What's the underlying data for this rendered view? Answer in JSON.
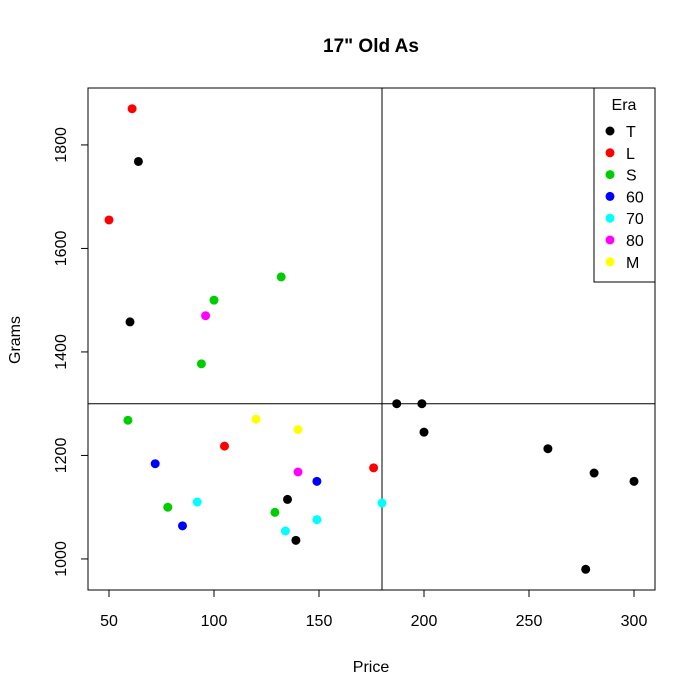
{
  "chart_data": {
    "type": "scatter",
    "title": "17\" Old As",
    "xlabel": "Price",
    "ylabel": "Grams",
    "xlim": [
      40,
      310
    ],
    "ylim": [
      940,
      1910
    ],
    "x_ticks": [
      50,
      100,
      150,
      200,
      250,
      300
    ],
    "y_ticks": [
      1000,
      1200,
      1400,
      1600,
      1800
    ],
    "reference_lines": {
      "vertical_x": 180,
      "horizontal_y": 1300
    },
    "grid": false,
    "legend": {
      "title": "Era",
      "placement": "top-right",
      "entries": [
        {
          "label": "T",
          "color": "#000000"
        },
        {
          "label": "L",
          "color": "#ff0000"
        },
        {
          "label": "S",
          "color": "#00cd00"
        },
        {
          "label": "60",
          "color": "#0000ff"
        },
        {
          "label": "70",
          "color": "#00ffff"
        },
        {
          "label": "80",
          "color": "#ff00ff"
        },
        {
          "label": "M",
          "color": "#ffff00"
        }
      ]
    },
    "series": [
      {
        "name": "T",
        "color": "#000000",
        "points": [
          [
            64,
            1768
          ],
          [
            60,
            1458
          ],
          [
            187,
            1300
          ],
          [
            199,
            1300
          ],
          [
            200,
            1245
          ],
          [
            259,
            1213
          ],
          [
            281,
            1166
          ],
          [
            300,
            1150
          ],
          [
            135,
            1115
          ],
          [
            139,
            1036
          ],
          [
            277,
            980
          ]
        ]
      },
      {
        "name": "L",
        "color": "#ff0000",
        "points": [
          [
            61,
            1870
          ],
          [
            50,
            1655
          ],
          [
            105,
            1218
          ],
          [
            176,
            1176
          ]
        ]
      },
      {
        "name": "S",
        "color": "#00cd00",
        "points": [
          [
            132,
            1545
          ],
          [
            100,
            1500
          ],
          [
            94,
            1377
          ],
          [
            59,
            1268
          ],
          [
            78,
            1100
          ],
          [
            129,
            1090
          ]
        ]
      },
      {
        "name": "60",
        "color": "#0000ff",
        "points": [
          [
            72,
            1184
          ],
          [
            149,
            1150
          ],
          [
            85,
            1064
          ]
        ]
      },
      {
        "name": "70",
        "color": "#00ffff",
        "points": [
          [
            92,
            1110
          ],
          [
            180,
            1108
          ],
          [
            149,
            1076
          ],
          [
            134,
            1054
          ]
        ]
      },
      {
        "name": "80",
        "color": "#ff00ff",
        "points": [
          [
            96,
            1470
          ],
          [
            140,
            1168
          ]
        ]
      },
      {
        "name": "M",
        "color": "#ffff00",
        "points": [
          [
            120,
            1270
          ],
          [
            140,
            1250
          ]
        ]
      }
    ]
  }
}
